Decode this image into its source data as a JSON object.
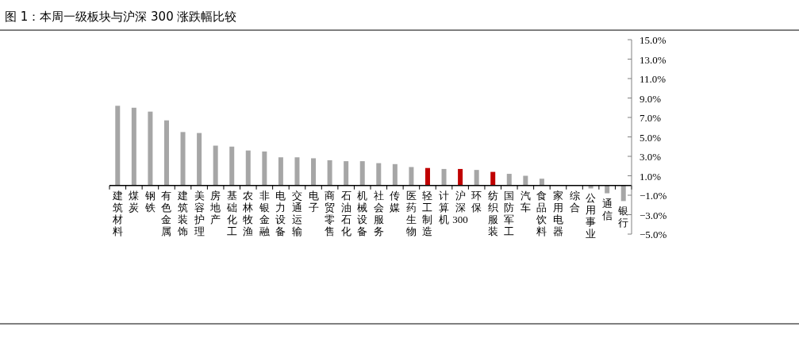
{
  "chart_data": {
    "type": "bar",
    "title": "图 1：本周一级板块与沪深 300 涨跌幅比较",
    "categories": [
      "建筑材料",
      "煤炭",
      "钢铁",
      "有色金属",
      "建筑装饰",
      "美容护理",
      "房地产",
      "基础化工",
      "农林牧渔",
      "非银金融",
      "电力设备",
      "交通运输",
      "电子",
      "商贸零售",
      "石油石化",
      "机械设备",
      "社会服务",
      "传媒",
      "医药生物",
      "轻工制造",
      "计算机",
      "沪深300",
      "环保",
      "纺织服装",
      "国防军工",
      "汽车",
      "食品饮料",
      "家用电器",
      "综合",
      "公用事业",
      "通信",
      "银行"
    ],
    "values": [
      8.2,
      8.0,
      7.6,
      6.7,
      5.5,
      5.4,
      4.1,
      4.0,
      3.6,
      3.5,
      2.9,
      2.9,
      2.8,
      2.6,
      2.5,
      2.5,
      2.3,
      2.2,
      1.9,
      1.8,
      1.7,
      1.7,
      1.6,
      1.4,
      1.2,
      1.0,
      0.7,
      0.0,
      0.0,
      -0.3,
      -0.8,
      -1.6
    ],
    "colors": [
      "#a6a6a6",
      "#a6a6a6",
      "#a6a6a6",
      "#a6a6a6",
      "#a6a6a6",
      "#a6a6a6",
      "#a6a6a6",
      "#a6a6a6",
      "#a6a6a6",
      "#a6a6a6",
      "#a6a6a6",
      "#a6a6a6",
      "#a6a6a6",
      "#a6a6a6",
      "#a6a6a6",
      "#a6a6a6",
      "#a6a6a6",
      "#a6a6a6",
      "#a6a6a6",
      "#c00000",
      "#a6a6a6",
      "#c00000",
      "#a6a6a6",
      "#c00000",
      "#a6a6a6",
      "#a6a6a6",
      "#a6a6a6",
      "#a6a6a6",
      "#a6a6a6",
      "#a6a6a6",
      "#a6a6a6",
      "#a6a6a6"
    ],
    "ylim": [
      -5,
      15
    ],
    "yticks": [
      {
        "value": 15,
        "label": "15.0%"
      },
      {
        "value": 13,
        "label": "13.0%"
      },
      {
        "value": 11,
        "label": "11.0%"
      },
      {
        "value": 9,
        "label": "9.0%"
      },
      {
        "value": 7,
        "label": "7.0%"
      },
      {
        "value": 5,
        "label": "5.0%"
      },
      {
        "value": 3,
        "label": "3.0%"
      },
      {
        "value": 1,
        "label": "1.0%"
      },
      {
        "value": -1,
        "label": "−1.0%"
      },
      {
        "value": -3,
        "label": "−3.0%"
      },
      {
        "value": -5,
        "label": "−5.0%"
      }
    ]
  }
}
